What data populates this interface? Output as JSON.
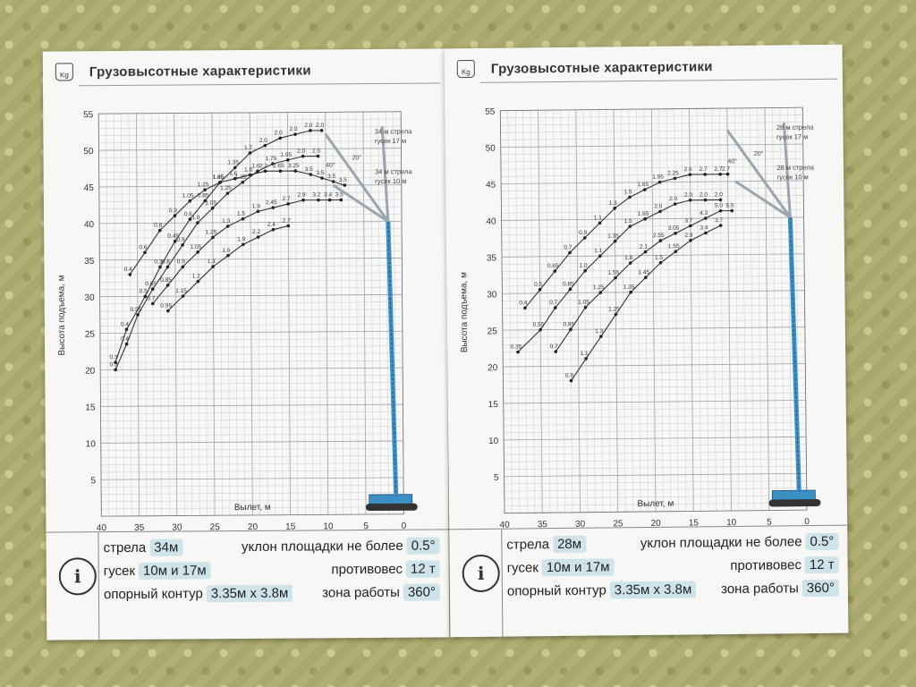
{
  "pages": [
    {
      "title": "Грузовысотные характеристики",
      "icon": "weight-kg-icon",
      "icon_text": "Kg",
      "x_axis_label": "Вылет, м",
      "y_axis_label": "Высота подъема, м",
      "boom_labels": [
        "34 м стрела",
        "гусек 17 м",
        "34 м стрела",
        "гусек 10 м"
      ],
      "angle_labels": [
        "40°",
        "20°"
      ],
      "specs": {
        "boom_label": "стрела",
        "boom_value": "34м",
        "slope_label": "уклон площадки не более",
        "slope_value": "0.5°",
        "jib_label": "гусек",
        "jib_value": "10м и 17м",
        "counterweight_label": "противовес",
        "counterweight_value": "12 т",
        "outrigger_label": "опорный контур",
        "outrigger_value": "3.35м х 3.8м",
        "zone_label": "зона работы",
        "zone_value": "360°"
      }
    },
    {
      "title": "Грузовысотные характеристики",
      "icon": "weight-kg-icon",
      "icon_text": "Kg",
      "x_axis_label": "Вылет, м",
      "y_axis_label": "Высота подъема, м",
      "boom_labels": [
        "28 м стрела",
        "гусек 17 м",
        "28 м стрела",
        "гусек 10 м"
      ],
      "angle_labels": [
        "40°",
        "20°"
      ],
      "specs": {
        "boom_label": "стрела",
        "boom_value": "28м",
        "slope_label": "уклон площадки не более",
        "slope_value": "0.5°",
        "jib_label": "гусек",
        "jib_value": "10м и 17м",
        "counterweight_label": "противовес",
        "counterweight_value": "12 т",
        "outrigger_label": "опорный контур",
        "outrigger_value": "3.35м х 3.8м",
        "zone_label": "зона работы",
        "zone_value": "360°"
      }
    }
  ],
  "chart_data": [
    {
      "type": "scatter",
      "title": "Грузовысотные характеристики",
      "xlabel": "Вылет, м",
      "ylabel": "Высота подъема, м",
      "x_reversed": true,
      "xlim": [
        40,
        0
      ],
      "ylim": [
        0,
        55
      ],
      "x_ticks": [
        "40",
        "35",
        "30",
        "25",
        "20",
        "15",
        "10",
        "5",
        "0"
      ],
      "y_ticks": [
        "5",
        "10",
        "15",
        "20",
        "25",
        "30",
        "35",
        "40",
        "45",
        "50",
        "55"
      ],
      "grid": true,
      "series": [
        {
          "x": [
            38,
            36.5,
            34,
            32,
            30,
            28,
            26,
            24,
            22,
            20,
            18,
            16,
            14,
            12,
            10.5
          ],
          "y": [
            21,
            25.5,
            30,
            34,
            37.5,
            40.5,
            43,
            45.5,
            47.5,
            49.5,
            50.5,
            51.5,
            52,
            52.5,
            52.5
          ],
          "labels": [
            "0.3",
            "0.4",
            "0.5",
            "0.3",
            "0.45",
            "0.6",
            "0.85",
            "1.05",
            "1.35",
            "1.7",
            "2.0",
            "2.0",
            "2.0",
            "2.0",
            "2.0"
          ]
        },
        {
          "x": [
            38,
            36.5,
            35,
            33,
            31,
            29,
            27,
            25,
            23,
            21,
            19,
            17,
            15,
            13,
            11
          ],
          "y": [
            20,
            23.5,
            27.5,
            31,
            34,
            37,
            40,
            42,
            44,
            45.5,
            47,
            48,
            48.5,
            49,
            49
          ],
          "labels": [
            "0.3",
            "0.4",
            "0.55",
            "0.65",
            "0.8",
            "0.9",
            "1.0",
            "1.05",
            "1.25",
            "1.35",
            "1.6",
            "1.75",
            "1.95",
            "2.0",
            "2.0"
          ]
        },
        {
          "x": [
            36,
            34,
            32,
            30,
            28,
            26,
            24,
            22,
            20,
            18,
            16,
            14,
            12,
            10.5,
            9,
            7.5
          ],
          "y": [
            33,
            36,
            39,
            41,
            43,
            44.5,
            45.5,
            46,
            46.5,
            47,
            47,
            47,
            46.5,
            46,
            45.5,
            45
          ],
          "labels": [
            "0.4",
            "0.6",
            "0.8",
            "0.9",
            "1.05",
            "1.25",
            "1.45",
            "1.6",
            "1.8",
            "2.2",
            "2.65",
            "3.25",
            "3.5",
            "3.5",
            "3.5",
            "3.5"
          ]
        },
        {
          "x": [
            33,
            31,
            29,
            27,
            25,
            23,
            21,
            19,
            17,
            15,
            13,
            11,
            9.5,
            8
          ],
          "y": [
            29,
            31.5,
            34,
            36,
            38,
            39.5,
            40.5,
            41.5,
            42,
            42.5,
            43,
            43,
            43,
            43
          ],
          "labels": [
            "0.7",
            "0.85",
            "0.9",
            "1.05",
            "1.25",
            "1.3",
            "1.5",
            "1.9",
            "2.45",
            "2.7",
            "2.9",
            "3.2",
            "3.4",
            "3.5"
          ]
        },
        {
          "x": [
            31,
            29,
            27,
            25,
            23,
            21,
            19,
            17,
            15
          ],
          "y": [
            28,
            30,
            32,
            34,
            35.5,
            37,
            38,
            39,
            39.5
          ],
          "labels": [
            "0.95",
            "1.15",
            "1.2",
            "1.3",
            "1.6",
            "1.9",
            "2.2",
            "2.4",
            "2.7"
          ]
        }
      ]
    },
    {
      "type": "scatter",
      "title": "Грузовысотные характеристики",
      "xlabel": "Вылет, м",
      "ylabel": "Высота подъема, м",
      "x_reversed": true,
      "xlim": [
        40,
        0
      ],
      "ylim": [
        0,
        55
      ],
      "x_ticks": [
        "40",
        "35",
        "30",
        "25",
        "20",
        "15",
        "10",
        "5",
        "0"
      ],
      "y_ticks": [
        "5",
        "10",
        "15",
        "20",
        "25",
        "30",
        "35",
        "40",
        "45",
        "50",
        "55"
      ],
      "grid": true,
      "series": [
        {
          "x": [
            37,
            35,
            33,
            31,
            29,
            27,
            25,
            23,
            21,
            19,
            17,
            15,
            13,
            11,
            10
          ],
          "y": [
            28,
            30.5,
            33,
            35.5,
            37.5,
            39.5,
            41.5,
            43,
            44,
            45,
            45.5,
            46,
            46,
            46,
            46
          ],
          "labels": [
            "0.4",
            "0.5",
            "0.65",
            "0.7",
            "0.9",
            "1.1",
            "1.3",
            "1.5",
            "1.65",
            "1.95",
            "2.25",
            "2.6",
            "2.7",
            "2.7",
            "2.7"
          ]
        },
        {
          "x": [
            38,
            35,
            33,
            31,
            29,
            27,
            25,
            23,
            21,
            19,
            17,
            15,
            13,
            11
          ],
          "y": [
            22,
            25,
            28,
            30.5,
            33,
            35,
            37,
            39,
            40,
            41,
            42,
            42.5,
            42.5,
            42.5
          ],
          "labels": [
            "0.35",
            "0.55",
            "0.7",
            "0.85",
            "1.0",
            "1.1",
            "1.35",
            "1.5",
            "1.65",
            "2.0",
            "2.0",
            "2.0",
            "2.0",
            "2.0"
          ]
        },
        {
          "x": [
            33,
            31,
            29,
            27,
            25,
            23,
            21,
            19,
            17,
            15,
            13,
            11,
            9.5
          ],
          "y": [
            22,
            25,
            28,
            30,
            32,
            34,
            35.5,
            37,
            38,
            39,
            40,
            41,
            41
          ],
          "labels": [
            "0.7",
            "0.85",
            "1.05",
            "1.25",
            "1.55",
            "1.8",
            "2.1",
            "2.55",
            "3.05",
            "3.7",
            "4.3",
            "5.0",
            "5.5"
          ]
        },
        {
          "x": [
            31,
            29,
            27,
            25,
            23,
            21,
            19,
            17,
            15,
            13,
            11
          ],
          "y": [
            18,
            21,
            24,
            27,
            30,
            32,
            34,
            35.5,
            37,
            38,
            39
          ],
          "labels": [
            "0.9",
            "1.1",
            "1.3",
            "1.25",
            "1.35",
            "1.45",
            "1.5",
            "1.55",
            "2.9",
            "3.4",
            "3.7"
          ]
        }
      ]
    }
  ]
}
